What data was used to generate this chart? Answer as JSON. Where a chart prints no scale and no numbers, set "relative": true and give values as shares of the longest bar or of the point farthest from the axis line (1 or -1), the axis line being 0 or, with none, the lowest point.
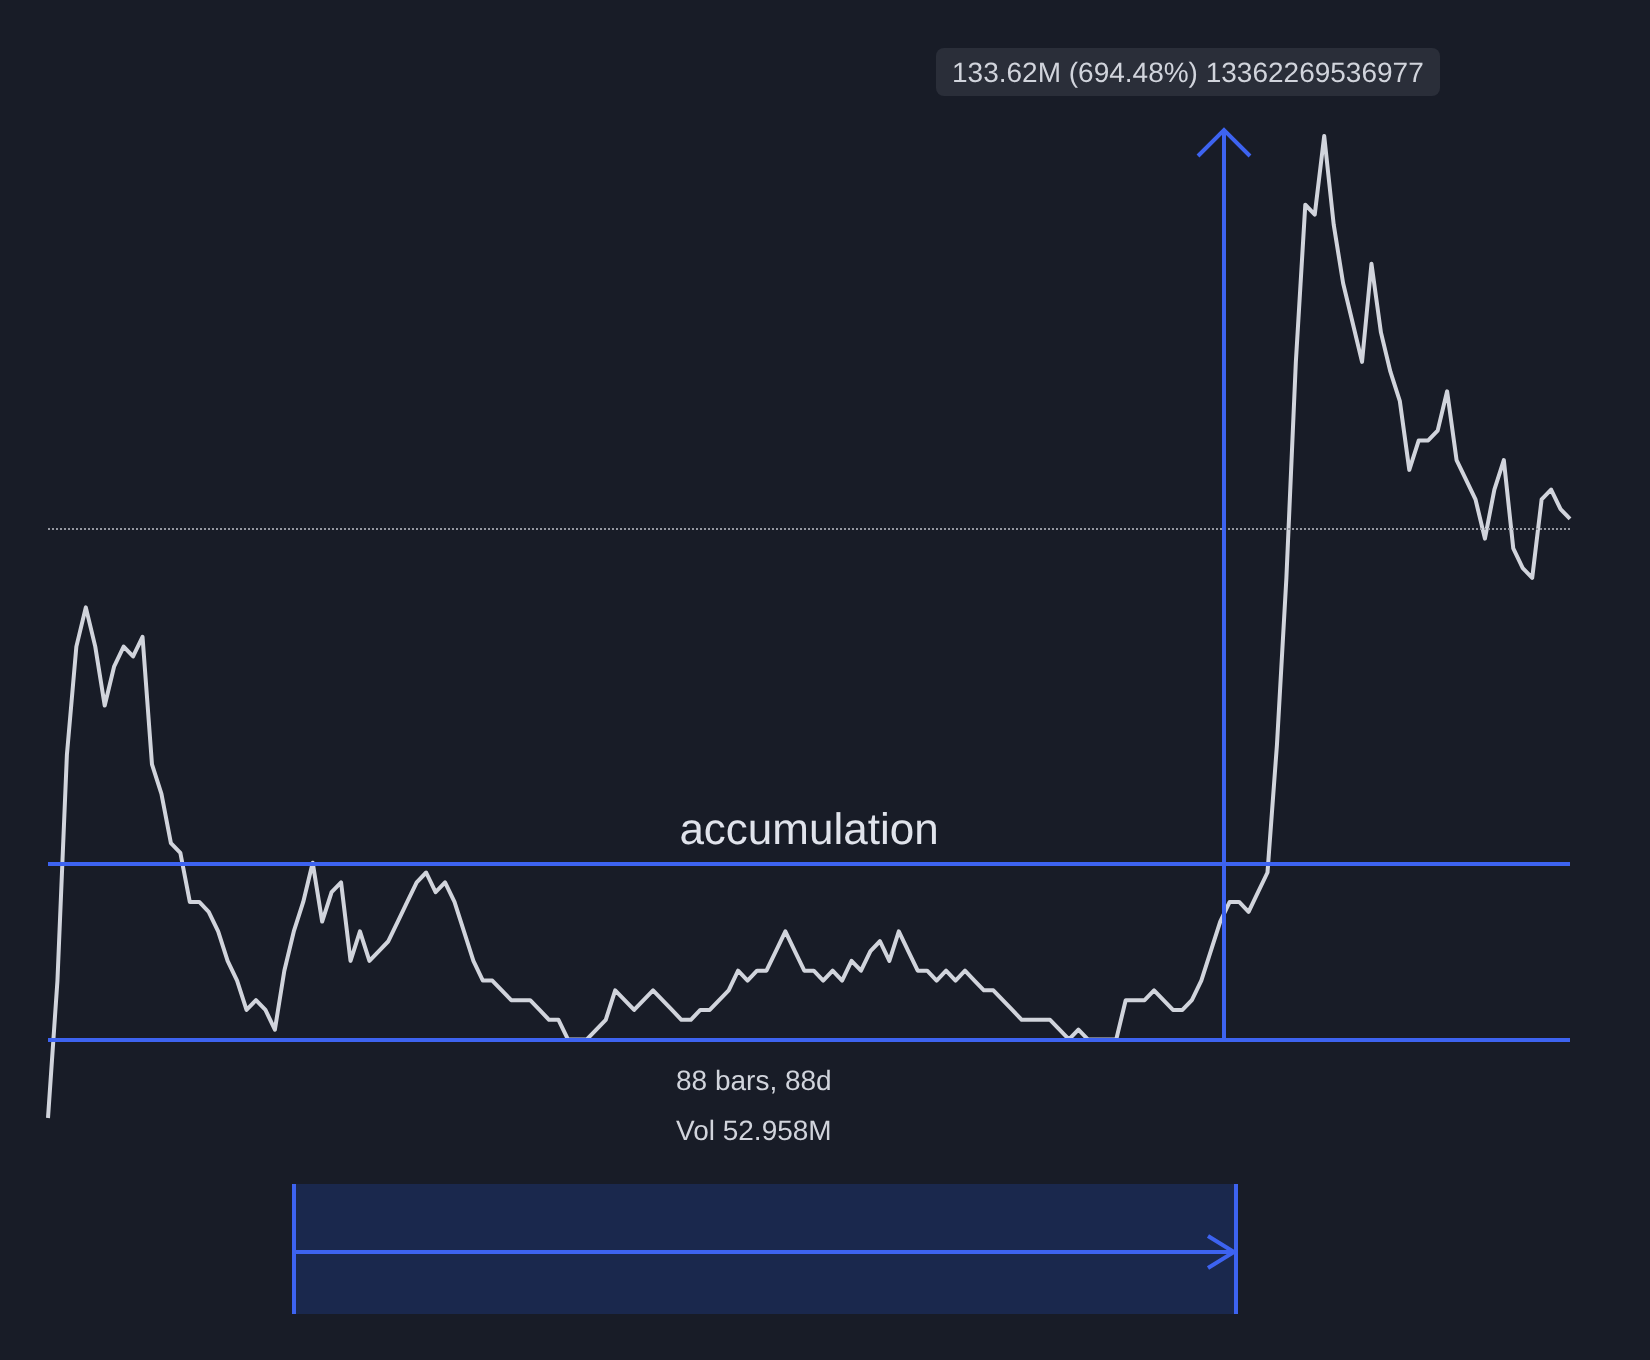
{
  "chart_data": {
    "type": "line",
    "relative": true,
    "line_style": "solid",
    "categories": [
      null,
      null,
      null,
      null,
      null,
      null,
      null,
      null,
      null,
      null,
      null,
      null,
      null,
      null,
      null,
      null,
      null,
      null,
      null,
      null,
      null,
      null,
      null,
      null,
      null,
      null,
      null,
      null,
      null,
      null,
      null,
      null,
      null,
      null,
      null,
      null,
      null,
      null,
      null,
      null,
      null,
      null,
      null,
      null,
      null,
      null,
      null,
      null,
      null,
      null,
      null,
      null,
      null,
      null,
      null,
      null,
      null,
      null,
      null,
      null,
      null,
      null,
      null,
      null,
      null,
      null,
      null,
      null,
      null,
      null,
      null,
      null,
      null,
      null,
      null,
      null,
      null,
      null,
      null,
      null,
      null,
      null,
      null,
      null,
      null,
      null,
      null,
      null,
      null,
      null,
      null,
      null,
      null,
      null,
      null,
      null,
      null,
      null,
      null,
      null,
      null,
      null,
      null,
      null,
      null,
      null,
      null,
      null,
      null,
      null,
      null,
      null,
      null,
      null,
      null,
      null,
      null,
      null,
      null,
      null,
      null,
      null,
      null,
      null,
      null,
      null,
      null,
      null,
      null,
      null,
      null,
      null,
      null,
      null,
      null,
      null,
      null,
      null,
      null,
      null,
      null,
      null,
      null,
      null,
      null,
      null,
      null,
      null,
      null,
      null,
      null,
      null,
      null,
      null,
      null,
      null,
      null,
      null,
      null,
      null,
      null,
      null
    ],
    "series": [
      {
        "color": "#d1d4dc",
        "values": [
          0,
          0.14,
          0.37,
          0.48,
          0.52,
          0.48,
          0.42,
          0.46,
          0.48,
          0.47,
          0.49,
          0.36,
          0.33,
          0.28,
          0.27,
          0.22,
          0.22,
          0.21,
          0.19,
          0.16,
          0.14,
          0.11,
          0.12,
          0.11,
          0.09,
          0.15,
          0.19,
          0.22,
          0.26,
          0.2,
          0.23,
          0.24,
          0.16,
          0.19,
          0.16,
          0.17,
          0.18,
          0.2,
          0.22,
          0.24,
          0.25,
          0.23,
          0.24,
          0.22,
          0.19,
          0.16,
          0.14,
          0.14,
          0.13,
          0.12,
          0.12,
          0.12,
          0.11,
          0.1,
          0.1,
          0.08,
          0.08,
          0.08,
          0.09,
          0.1,
          0.13,
          0.12,
          0.11,
          0.12,
          0.13,
          0.12,
          0.11,
          0.1,
          0.1,
          0.11,
          0.11,
          0.12,
          0.13,
          0.15,
          0.14,
          0.15,
          0.15,
          0.17,
          0.19,
          0.17,
          0.15,
          0.15,
          0.14,
          0.15,
          0.14,
          0.16,
          0.15,
          0.17,
          0.18,
          0.16,
          0.19,
          0.17,
          0.15,
          0.15,
          0.14,
          0.15,
          0.14,
          0.15,
          0.14,
          0.13,
          0.13,
          0.12,
          0.11,
          0.1,
          0.1,
          0.1,
          0.1,
          0.09,
          0.08,
          0.09,
          0.08,
          0.08,
          0.08,
          0.08,
          0.12,
          0.12,
          0.12,
          0.13,
          0.12,
          0.11,
          0.11,
          0.12,
          0.14,
          0.17,
          0.2,
          0.22,
          0.22,
          0.21,
          0.23,
          0.25,
          0.38,
          0.55,
          0.77,
          0.93,
          0.92,
          1.0,
          0.91,
          0.85,
          0.81,
          0.77,
          0.87,
          0.8,
          0.76,
          0.73,
          0.66,
          0.69,
          0.69,
          0.7,
          0.74,
          0.67,
          0.65,
          0.63,
          0.59,
          0.64,
          0.67,
          0.58,
          0.56,
          0.55,
          0.63,
          0.64,
          0.62,
          0.61
        ]
      }
    ],
    "ref_lines": [
      {
        "axis": "y",
        "value": 0.26,
        "label": "accumulation",
        "color": "#3d63f0",
        "line_style": "solid"
      },
      {
        "axis": "y",
        "value": 0.08,
        "label": null,
        "color": "#3d63f0",
        "line_style": "solid"
      },
      {
        "axis": "y",
        "value": 0.6,
        "label": null,
        "color": "#9598a1",
        "line_style": "dotted"
      }
    ],
    "annotations": [
      "133.62M (694.48%) 13362269536977",
      "88 bars, 88d",
      "Vol 52.958M"
    ]
  }
}
